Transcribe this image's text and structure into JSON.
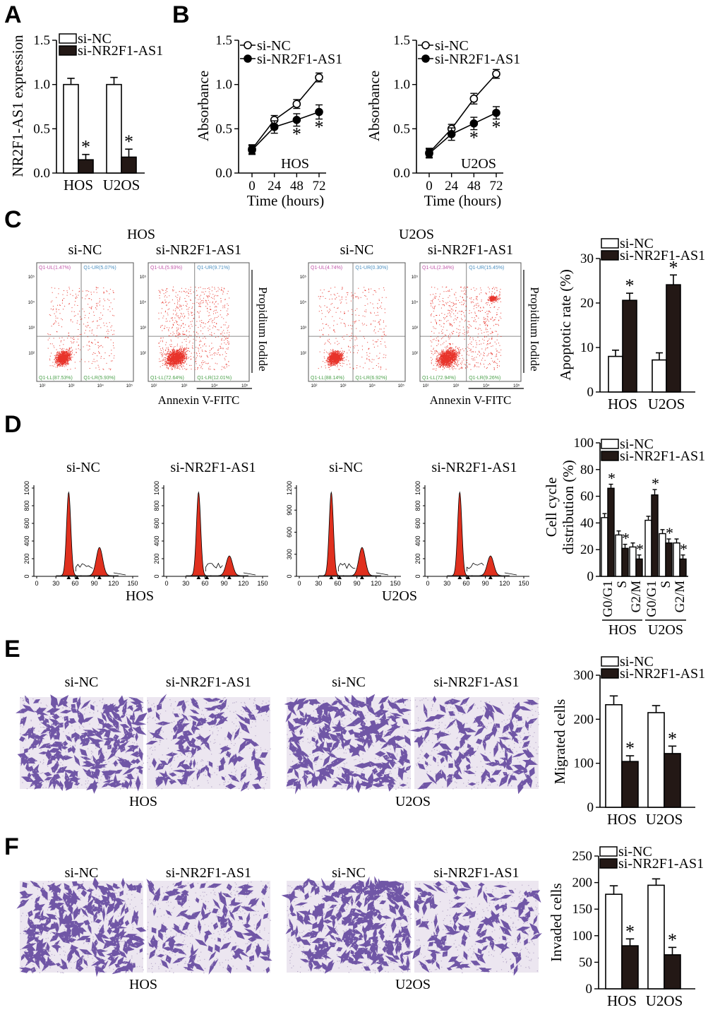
{
  "colors": {
    "line": "#000000",
    "bar_nc": "#ffffff",
    "bar_si": "#231815",
    "dot": "#e8332a",
    "peak": "#e0301e",
    "stain_bg": "#ece6f0",
    "stain_cell": "#5a3c99",
    "flow_nc": "#4a8fc0",
    "flow_si": "#4aa04a",
    "flow_ul": "#c054a8"
  },
  "panels": {
    "A": {
      "label": "A"
    },
    "B": {
      "label": "B"
    },
    "C": {
      "label": "C",
      "xlabel": "Annexin V-FITC",
      "ylabel": "Propidium Iodide",
      "groups": [
        {
          "title": "HOS",
          "conditions": [
            {
              "name": "si-NC",
              "q_ul": "Q1-UL(1.47%)",
              "q_ur": "Q1-UR(5.07%)",
              "q_ll": "Q1-LL(87.53%)",
              "q_lr": "Q1-LR(5.93%)"
            },
            {
              "name": "si-NR2F1-AS1",
              "q_ul": "Q1-UL(5.93%)",
              "q_ur": "Q1-UR(9.71%)",
              "q_ll": "Q1-LL(72.64%)",
              "q_lr": "Q1-LR(12.01%)"
            }
          ]
        },
        {
          "title": "U2OS",
          "conditions": [
            {
              "name": "si-NC",
              "q_ul": "Q1-UL(4.74%)",
              "q_ur": "Q1-UR(0.30%)",
              "q_ll": "Q1-LL(88.14%)",
              "q_lr": "Q1-LR(6.92%)"
            },
            {
              "name": "si-NR2F1-AS1",
              "q_ul": "Q1-UL(2.34%)",
              "q_ur": "Q1-UR(15.45%)",
              "q_ll": "Q1-LL(72.94%)",
              "q_lr": "Q1-LR(9.26%)"
            }
          ]
        }
      ]
    },
    "D": {
      "label": "D",
      "histograms": [
        {
          "title": "si-NC",
          "line": "HOS",
          "yticks": [
            "0",
            "200",
            "400",
            "600",
            "800",
            "1000"
          ],
          "xticks": [
            "0",
            "30",
            "60",
            "90",
            "120",
            "150"
          ]
        },
        {
          "title": "si-NR2F1-AS1",
          "line": "",
          "yticks": [
            "0",
            "200",
            "400",
            "600",
            "800",
            "1000"
          ],
          "xticks": [
            "0",
            "30",
            "60",
            "90",
            "120",
            "150"
          ]
        },
        {
          "title": "si-NC",
          "line": "U2OS",
          "yticks": [
            "0",
            "300",
            "600",
            "900",
            "1200"
          ],
          "xticks": [
            "0",
            "30",
            "60",
            "90",
            "120",
            "150"
          ]
        },
        {
          "title": "si-NR2F1-AS1",
          "line": "",
          "yticks": [
            "0",
            "200",
            "400",
            "600",
            "800",
            "1000"
          ],
          "xticks": [
            "0",
            "30",
            "60",
            "90",
            "120",
            "150"
          ]
        }
      ]
    },
    "E": {
      "label": "E",
      "images": [
        {
          "title": "si-NC",
          "group": "HOS"
        },
        {
          "title": "si-NR2F1-AS1",
          "group": ""
        },
        {
          "title": "si-NC",
          "group": "U2OS"
        },
        {
          "title": "si-NR2F1-AS1",
          "group": ""
        }
      ]
    },
    "F": {
      "label": "F",
      "images": [
        {
          "title": "si-NC",
          "group": "HOS"
        },
        {
          "title": "si-NR2F1-AS1",
          "group": ""
        },
        {
          "title": "si-NC",
          "group": "U2OS"
        },
        {
          "title": "si-NR2F1-AS1",
          "group": ""
        }
      ]
    }
  },
  "chart_data": [
    {
      "id": "A",
      "type": "bar",
      "ylabel": "NR2F1-AS1 expression",
      "ylim": [
        0,
        1.5
      ],
      "yticks": [
        "0.0",
        "0.5",
        "1.0",
        "1.5"
      ],
      "categories": [
        "HOS",
        "U2OS"
      ],
      "series": [
        {
          "name": "si-NC",
          "values": [
            1.0,
            1.0
          ],
          "errors": [
            0.07,
            0.08
          ],
          "sig": [
            false,
            false
          ]
        },
        {
          "name": "si-NR2F1-AS1",
          "values": [
            0.15,
            0.18
          ],
          "errors": [
            0.06,
            0.09
          ],
          "sig": [
            true,
            true
          ]
        }
      ]
    },
    {
      "id": "B1",
      "type": "line",
      "ylabel": "Absorbance",
      "xlabel": "Time (hours)",
      "inset": "HOS",
      "ylim": [
        0,
        1.5
      ],
      "yticks": [
        "0.0",
        "0.5",
        "1.0",
        "1.5"
      ],
      "x": [
        0,
        24,
        48,
        72
      ],
      "series": [
        {
          "name": "si-NC",
          "values": [
            0.27,
            0.6,
            0.78,
            1.08
          ],
          "errors": [
            0.05,
            0.05,
            0.05,
            0.05
          ],
          "sig": [
            false,
            false,
            false,
            false
          ],
          "marker": "open"
        },
        {
          "name": "si-NR2F1-AS1",
          "values": [
            0.26,
            0.52,
            0.6,
            0.69
          ],
          "errors": [
            0.05,
            0.07,
            0.07,
            0.08
          ],
          "sig": [
            false,
            false,
            true,
            true
          ],
          "marker": "filled"
        }
      ]
    },
    {
      "id": "B2",
      "type": "line",
      "ylabel": "Absorbance",
      "xlabel": "Time (hours)",
      "inset": "U2OS",
      "ylim": [
        0,
        1.5
      ],
      "yticks": [
        "0.0",
        "0.5",
        "1.0",
        "1.5"
      ],
      "x": [
        0,
        24,
        48,
        72
      ],
      "series": [
        {
          "name": "si-NC",
          "values": [
            0.23,
            0.5,
            0.84,
            1.12
          ],
          "errors": [
            0.05,
            0.05,
            0.06,
            0.05
          ],
          "sig": [
            false,
            false,
            false,
            false
          ],
          "marker": "open"
        },
        {
          "name": "si-NR2F1-AS1",
          "values": [
            0.22,
            0.44,
            0.56,
            0.68
          ],
          "errors": [
            0.05,
            0.07,
            0.07,
            0.07
          ],
          "sig": [
            false,
            false,
            true,
            true
          ],
          "marker": "filled"
        }
      ]
    },
    {
      "id": "C",
      "type": "bar",
      "ylabel": "Apoptotic rate (%)",
      "ylim": [
        0,
        30
      ],
      "yticks": [
        "0",
        "10",
        "20",
        "30"
      ],
      "categories": [
        "HOS",
        "U2OS"
      ],
      "series": [
        {
          "name": "si-NC",
          "values": [
            8.0,
            7.2
          ],
          "errors": [
            1.4,
            1.6
          ],
          "sig": [
            false,
            false
          ]
        },
        {
          "name": "si-NR2F1-AS1",
          "values": [
            20.6,
            24.1
          ],
          "errors": [
            1.6,
            2.2
          ],
          "sig": [
            true,
            true
          ]
        }
      ]
    },
    {
      "id": "D",
      "type": "bar",
      "ylabel": "Cell cycle distribution (%)",
      "ylim": [
        0,
        100
      ],
      "yticks": [
        "0",
        "20",
        "40",
        "60",
        "80",
        "100"
      ],
      "categories": [
        "G0/G1",
        "S",
        "G2/M",
        "G0/G1",
        "S",
        "G2/M"
      ],
      "groups": [
        "HOS",
        "U2OS"
      ],
      "series": [
        {
          "name": "si-NC",
          "values": [
            44,
            31,
            22,
            42,
            32,
            25
          ],
          "errors": [
            3,
            3,
            3,
            3,
            3,
            3
          ],
          "sig": [
            false,
            false,
            false,
            false,
            false,
            false
          ]
        },
        {
          "name": "si-NR2F1-AS1",
          "values": [
            66,
            21,
            13,
            61,
            25,
            13
          ],
          "errors": [
            3,
            3,
            3,
            4,
            3,
            3
          ],
          "sig": [
            true,
            true,
            true,
            true,
            true,
            true
          ]
        }
      ]
    },
    {
      "id": "E",
      "type": "bar",
      "ylabel": "Migrated cells",
      "ylim": [
        0,
        300
      ],
      "yticks": [
        "0",
        "100",
        "200",
        "300"
      ],
      "categories": [
        "HOS",
        "U2OS"
      ],
      "series": [
        {
          "name": "si-NC",
          "values": [
            233,
            215
          ],
          "errors": [
            20,
            16
          ],
          "sig": [
            false,
            false
          ]
        },
        {
          "name": "si-NR2F1-AS1",
          "values": [
            104,
            122
          ],
          "errors": [
            13,
            17
          ],
          "sig": [
            true,
            true
          ]
        }
      ]
    },
    {
      "id": "F",
      "type": "bar",
      "ylabel": "Invaded cells",
      "ylim": [
        0,
        250
      ],
      "yticks": [
        "0",
        "50",
        "100",
        "150",
        "200",
        "250"
      ],
      "categories": [
        "HOS",
        "U2OS"
      ],
      "series": [
        {
          "name": "si-NC",
          "values": [
            178,
            195
          ],
          "errors": [
            16,
            12
          ],
          "sig": [
            false,
            false
          ]
        },
        {
          "name": "si-NR2F1-AS1",
          "values": [
            81,
            64
          ],
          "errors": [
            13,
            14
          ],
          "sig": [
            true,
            true
          ]
        }
      ]
    }
  ]
}
